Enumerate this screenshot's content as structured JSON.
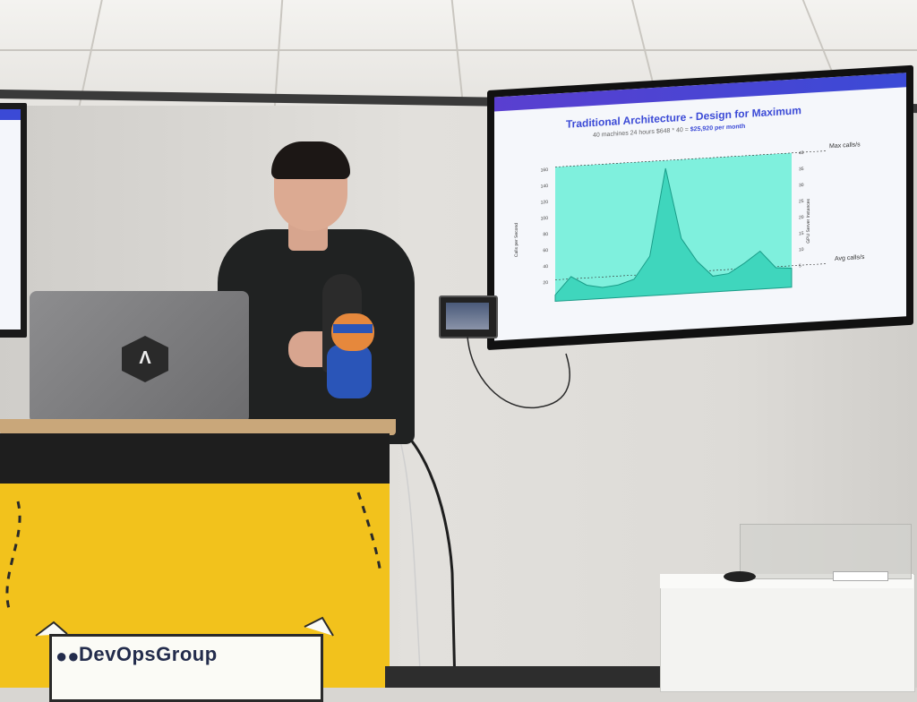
{
  "slide": {
    "title": "Traditional Architecture - Design for Maximum",
    "subtitle_plain": "40 machines 24 hours   $648 * 40 = ",
    "subtitle_strong": "$25,920 per month",
    "max_label": "Max calls/s",
    "avg_label": "Avg calls/s",
    "left_axis_label": "Calls per Second",
    "right_axis_label": "GPU Server Instances",
    "left_ticks": [
      "160",
      "140",
      "120",
      "100",
      "80",
      "60",
      "40",
      "20"
    ],
    "right_ticks": [
      "40",
      "35",
      "30",
      "25",
      "20",
      "15",
      "10",
      "5"
    ],
    "accent_color": "#3b4ad6",
    "fill_color": "#4fe0c9",
    "area_values": [
      8,
      30,
      18,
      14,
      16,
      22,
      50,
      160,
      70,
      40,
      20,
      22,
      34,
      48,
      26,
      24
    ]
  },
  "podium": {
    "brand": "DevOpsGroup"
  }
}
